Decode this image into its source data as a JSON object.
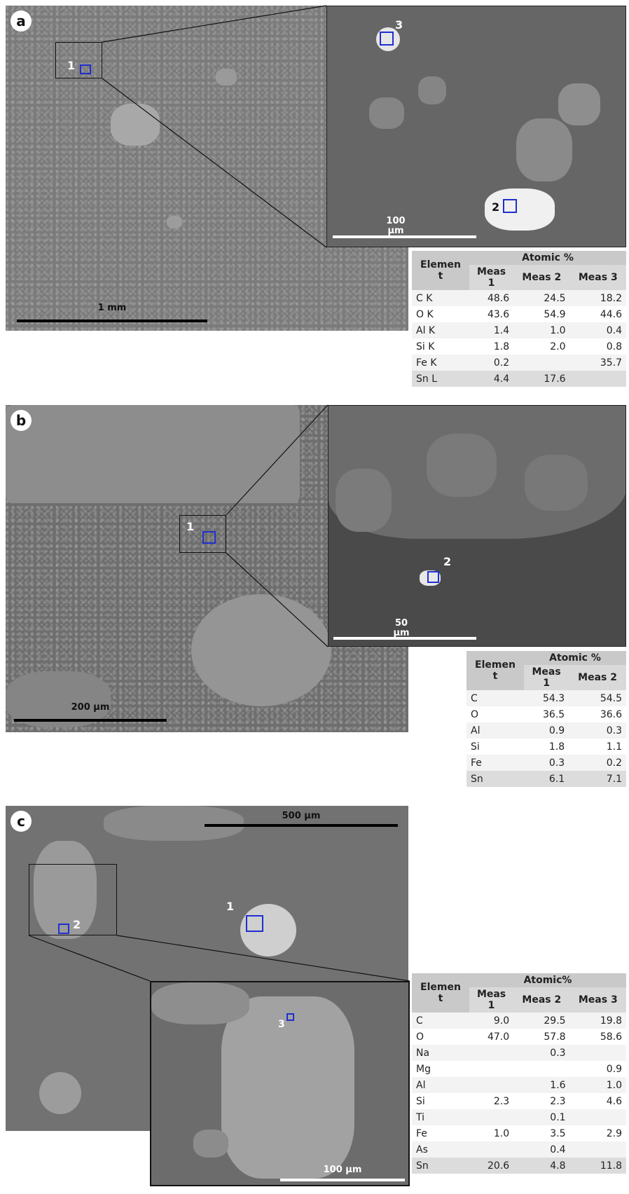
{
  "panels": [
    {
      "letter": "a",
      "main_scale": "1 mm",
      "inset_scale": "100\nµm",
      "points_main": [
        "1"
      ],
      "points_inset": [
        "2",
        "3"
      ],
      "table": {
        "element_header": "Elemen\nt",
        "group_header": "Atomic %",
        "columns": [
          "Meas\n1",
          "Meas 2",
          "Meas 3"
        ],
        "rows": [
          {
            "el": "C K",
            "v": [
              "48.6",
              "24.5",
              "18.2"
            ]
          },
          {
            "el": "O K",
            "v": [
              "43.6",
              "54.9",
              "44.6"
            ]
          },
          {
            "el": "Al K",
            "v": [
              "1.4",
              "1.0",
              "0.4"
            ]
          },
          {
            "el": "Si K",
            "v": [
              "1.8",
              "2.0",
              "0.8"
            ]
          },
          {
            "el": "Fe K",
            "v": [
              "0.2",
              "",
              "35.7"
            ]
          },
          {
            "el": "Sn L",
            "v": [
              "4.4",
              "17.6",
              ""
            ]
          }
        ]
      }
    },
    {
      "letter": "b",
      "main_scale": "200 µm",
      "inset_scale": "50\nµm",
      "points_main": [
        "1"
      ],
      "points_inset": [
        "2"
      ],
      "table": {
        "element_header": "Elemen\nt",
        "group_header": "Atomic %",
        "columns": [
          "Meas\n1",
          "Meas 2"
        ],
        "rows": [
          {
            "el": "C",
            "v": [
              "54.3",
              "54.5"
            ]
          },
          {
            "el": "O",
            "v": [
              "36.5",
              "36.6"
            ]
          },
          {
            "el": "Al",
            "v": [
              "0.9",
              "0.3"
            ]
          },
          {
            "el": "Si",
            "v": [
              "1.8",
              "1.1"
            ]
          },
          {
            "el": "Fe",
            "v": [
              "0.3",
              "0.2"
            ]
          },
          {
            "el": "Sn",
            "v": [
              "6.1",
              "7.1"
            ]
          }
        ]
      }
    },
    {
      "letter": "c",
      "main_scale": "500 µm",
      "inset_scale": "100 µm",
      "points_main": [
        "1",
        "2"
      ],
      "points_inset": [
        "3"
      ],
      "table": {
        "element_header": "Elemen\nt",
        "group_header": "Atomic%",
        "columns": [
          "Meas\n1",
          "Meas 2",
          "Meas 3"
        ],
        "rows": [
          {
            "el": "C",
            "v": [
              "9.0",
              "29.5",
              "19.8"
            ]
          },
          {
            "el": "O",
            "v": [
              "47.0",
              "57.8",
              "58.6"
            ]
          },
          {
            "el": "Na",
            "v": [
              "",
              "0.3",
              ""
            ]
          },
          {
            "el": "Mg",
            "v": [
              "",
              "",
              "0.9"
            ]
          },
          {
            "el": "Al",
            "v": [
              "",
              "1.6",
              "1.0"
            ]
          },
          {
            "el": "Si",
            "v": [
              "2.3",
              "2.3",
              "4.6"
            ]
          },
          {
            "el": "Ti",
            "v": [
              "",
              "0.1",
              ""
            ]
          },
          {
            "el": "Fe",
            "v": [
              "1.0",
              "3.5",
              "2.9"
            ]
          },
          {
            "el": "As",
            "v": [
              "",
              "0.4",
              ""
            ]
          },
          {
            "el": "Sn",
            "v": [
              "20.6",
              "4.8",
              "11.8"
            ]
          }
        ]
      }
    }
  ]
}
